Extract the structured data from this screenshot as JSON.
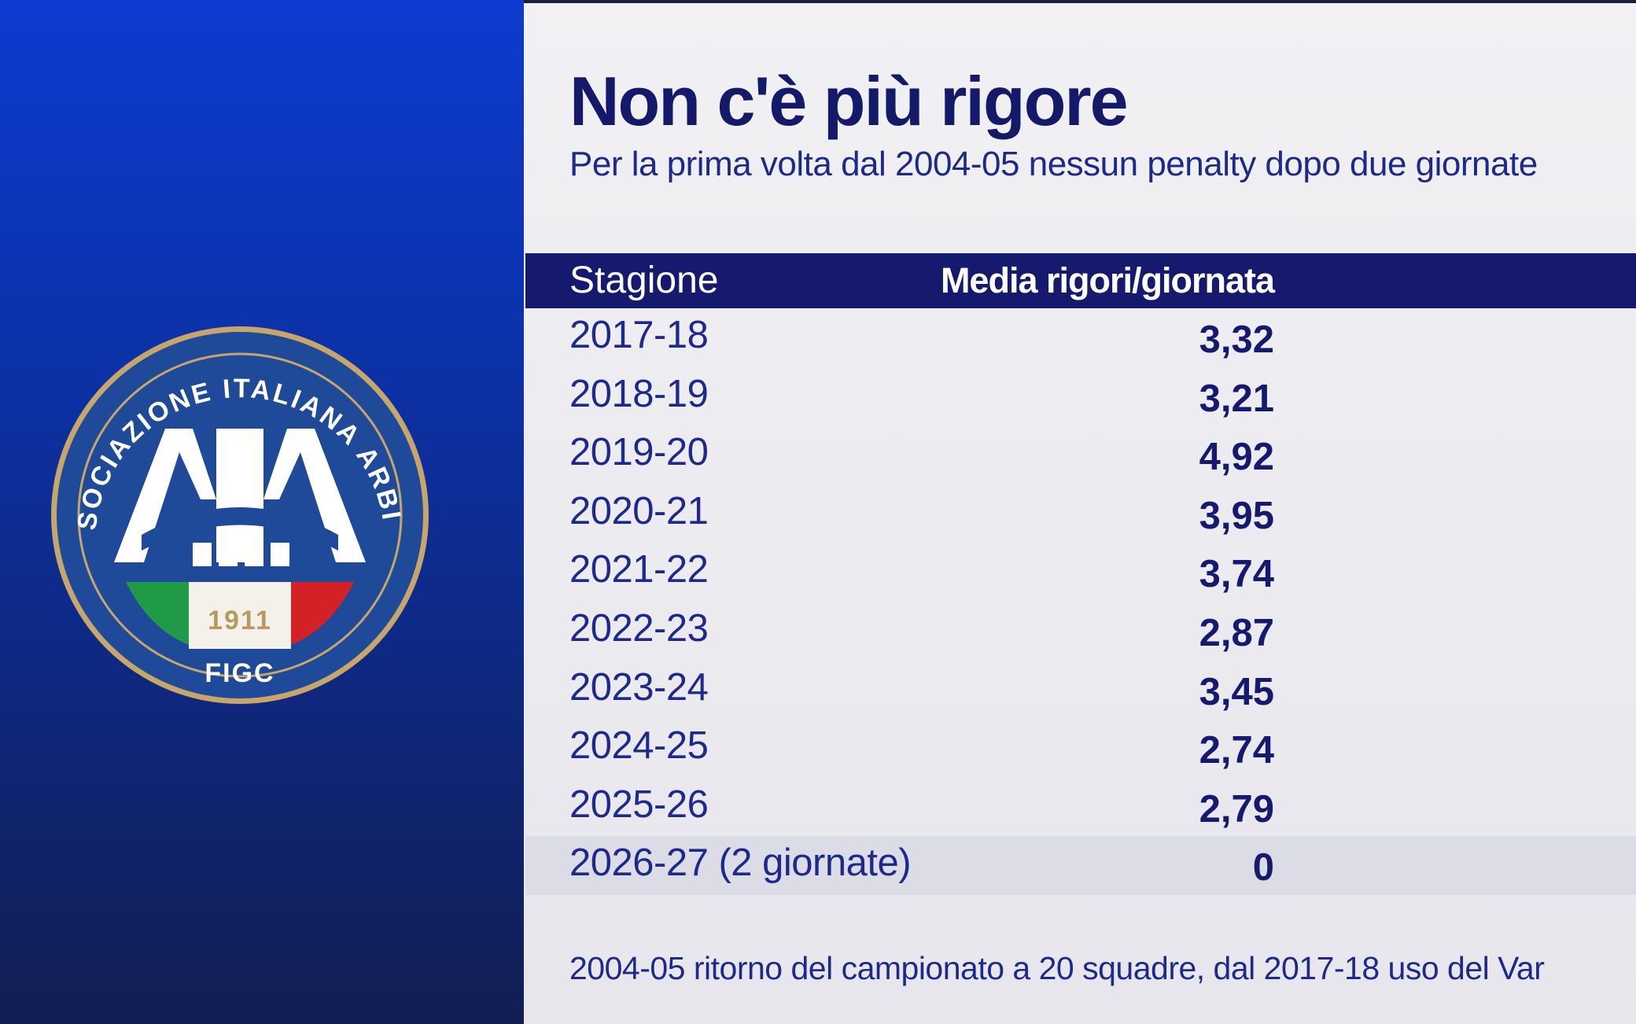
{
  "title": "Non c'è più rigore",
  "subtitle": "Per la prima volta dal 2004-05 nessun penalty dopo due giornate",
  "logo": {
    "ring_text": "ASSOCIAZIONE ITALIANA ARBITRI",
    "letters": "AIA",
    "year": "1911",
    "bottom_text": "FIGC"
  },
  "table": {
    "headers": {
      "season": "Stagione",
      "average": "Media rigori/giornata"
    },
    "rows": [
      {
        "season": "2017-18",
        "average": "3,32"
      },
      {
        "season": "2018-19",
        "average": "3,21"
      },
      {
        "season": "2019-20",
        "average": "4,92"
      },
      {
        "season": "2020-21",
        "average": "3,95"
      },
      {
        "season": "2021-22",
        "average": "3,74"
      },
      {
        "season": "2022-23",
        "average": "2,87"
      },
      {
        "season": "2023-24",
        "average": "3,45"
      },
      {
        "season": "2024-25",
        "average": "2,74"
      },
      {
        "season": "2025-26",
        "average": "2,79"
      },
      {
        "season": "2026-27 (2 giornate)",
        "average": "0"
      }
    ]
  },
  "footnote": "2004-05 ritorno del campionato a 20 squadre, dal 2017-18 uso del Var",
  "colors": {
    "navy": "#151a6e",
    "text_blue": "#1d2a8c",
    "panel_blue": "#0e3bd0",
    "gold": "#b89a5c"
  }
}
